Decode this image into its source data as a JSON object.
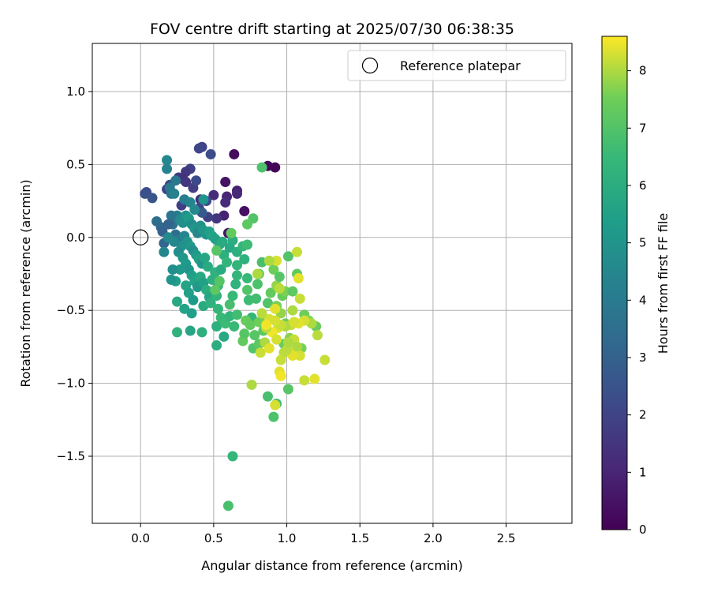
{
  "chart_data": {
    "type": "scatter",
    "title": "FOV centre drift starting at 2025/07/30 06:38:35",
    "xlabel": "Angular distance from reference (arcmin)",
    "ylabel": "Rotation from reference (arcmin)",
    "xlim": [
      -0.33,
      2.95
    ],
    "ylim": [
      -1.96,
      1.33
    ],
    "xticks": [
      0.0,
      0.5,
      1.0,
      1.5,
      2.0,
      2.5
    ],
    "xtick_labels": [
      "0.0",
      "0.5",
      "1.0",
      "1.5",
      "2.0",
      "2.5"
    ],
    "yticks": [
      -1.5,
      -1.0,
      -0.5,
      0.0,
      0.5,
      1.0
    ],
    "ytick_labels": [
      "−1.5",
      "−1.0",
      "−0.5",
      "0.0",
      "0.5",
      "1.0"
    ],
    "grid": true,
    "legend": {
      "placement": "top-right",
      "entries": [
        {
          "label": "Reference platepar",
          "marker": "open-circle"
        }
      ]
    },
    "reference_point": {
      "x": 0.0,
      "y": 0.0
    },
    "colorbar": {
      "label": "Hours from first FF file",
      "colormap": "viridis",
      "range": [
        0,
        8.6
      ],
      "ticks": [
        0,
        1,
        2,
        3,
        4,
        5,
        6,
        7,
        8
      ],
      "tick_labels": [
        "0",
        "1",
        "2",
        "3",
        "4",
        "5",
        "6",
        "7",
        "8"
      ]
    },
    "points": [
      {
        "x": 0.64,
        "y": 0.57,
        "h": 0.3
      },
      {
        "x": 0.87,
        "y": 0.49,
        "h": 0.2
      },
      {
        "x": 0.92,
        "y": 0.48,
        "h": 0.1
      },
      {
        "x": 0.58,
        "y": 0.38,
        "h": 0.5
      },
      {
        "x": 0.66,
        "y": 0.32,
        "h": 0.8
      },
      {
        "x": 0.59,
        "y": 0.28,
        "h": 1.0
      },
      {
        "x": 0.71,
        "y": 0.18,
        "h": 0.4
      },
      {
        "x": 0.58,
        "y": 0.24,
        "h": 1.2
      },
      {
        "x": 0.6,
        "y": 0.03,
        "h": 0.6
      },
      {
        "x": 0.66,
        "y": 0.3,
        "h": 1.1
      },
      {
        "x": 0.57,
        "y": 0.15,
        "h": 0.9
      },
      {
        "x": 0.42,
        "y": 0.62,
        "h": 2.0
      },
      {
        "x": 0.4,
        "y": 0.61,
        "h": 2.1
      },
      {
        "x": 0.48,
        "y": 0.57,
        "h": 2.3
      },
      {
        "x": 0.34,
        "y": 0.47,
        "h": 1.9
      },
      {
        "x": 0.31,
        "y": 0.45,
        "h": 1.6
      },
      {
        "x": 0.26,
        "y": 0.41,
        "h": 1.7
      },
      {
        "x": 0.29,
        "y": 0.4,
        "h": 1.4
      },
      {
        "x": 0.31,
        "y": 0.38,
        "h": 1.5
      },
      {
        "x": 0.36,
        "y": 0.34,
        "h": 1.8
      },
      {
        "x": 0.41,
        "y": 0.26,
        "h": 1.3
      },
      {
        "x": 0.5,
        "y": 0.29,
        "h": 1.2
      },
      {
        "x": 0.52,
        "y": 0.13,
        "h": 1.5
      },
      {
        "x": 0.38,
        "y": 0.39,
        "h": 2.2
      },
      {
        "x": 0.04,
        "y": 0.31,
        "h": 2.3
      },
      {
        "x": 0.03,
        "y": 0.3,
        "h": 2.4
      },
      {
        "x": 0.08,
        "y": 0.27,
        "h": 2.6
      },
      {
        "x": 0.18,
        "y": 0.33,
        "h": 2.0
      },
      {
        "x": 0.2,
        "y": 0.36,
        "h": 2.2
      },
      {
        "x": 0.46,
        "y": 0.14,
        "h": 1.9
      },
      {
        "x": 0.45,
        "y": 0.25,
        "h": 2.3
      },
      {
        "x": 0.4,
        "y": 0.2,
        "h": 2.0
      },
      {
        "x": 0.42,
        "y": 0.17,
        "h": 2.7
      },
      {
        "x": 0.28,
        "y": 0.22,
        "h": 1.8
      },
      {
        "x": 0.18,
        "y": 0.53,
        "h": 4.5
      },
      {
        "x": 0.18,
        "y": 0.47,
        "h": 4.3
      },
      {
        "x": 0.24,
        "y": 0.39,
        "h": 3.9
      },
      {
        "x": 0.2,
        "y": 0.34,
        "h": 4.0
      },
      {
        "x": 0.21,
        "y": 0.3,
        "h": 3.8
      },
      {
        "x": 0.23,
        "y": 0.3,
        "h": 4.2
      },
      {
        "x": 0.3,
        "y": 0.26,
        "h": 4.1
      },
      {
        "x": 0.34,
        "y": 0.24,
        "h": 4.4
      },
      {
        "x": 0.43,
        "y": 0.26,
        "h": 5.0
      },
      {
        "x": 0.37,
        "y": 0.19,
        "h": 4.6
      },
      {
        "x": 0.25,
        "y": 0.15,
        "h": 4.2
      },
      {
        "x": 0.11,
        "y": 0.11,
        "h": 3.5
      },
      {
        "x": 0.14,
        "y": 0.07,
        "h": 3.3
      },
      {
        "x": 0.15,
        "y": 0.04,
        "h": 3.0
      },
      {
        "x": 0.16,
        "y": -0.04,
        "h": 3.2
      },
      {
        "x": 0.21,
        "y": 0.15,
        "h": 3.8
      },
      {
        "x": 0.22,
        "y": 0.09,
        "h": 3.7
      },
      {
        "x": 0.24,
        "y": 0.02,
        "h": 3.5
      },
      {
        "x": 0.25,
        "y": -0.02,
        "h": 3.9
      },
      {
        "x": 0.19,
        "y": 0.09,
        "h": 3.1
      },
      {
        "x": 0.27,
        "y": 0.12,
        "h": 4.6
      },
      {
        "x": 0.29,
        "y": 0.1,
        "h": 4.8
      },
      {
        "x": 0.31,
        "y": 0.15,
        "h": 5.0
      },
      {
        "x": 0.33,
        "y": 0.13,
        "h": 5.3
      },
      {
        "x": 0.35,
        "y": 0.09,
        "h": 4.7
      },
      {
        "x": 0.37,
        "y": 0.06,
        "h": 5.1
      },
      {
        "x": 0.39,
        "y": 0.03,
        "h": 4.5
      },
      {
        "x": 0.41,
        "y": 0.08,
        "h": 4.9
      },
      {
        "x": 0.43,
        "y": 0.05,
        "h": 5.2
      },
      {
        "x": 0.45,
        "y": 0.02,
        "h": 5.0
      },
      {
        "x": 0.47,
        "y": 0.04,
        "h": 5.4
      },
      {
        "x": 0.49,
        "y": 0.01,
        "h": 5.6
      },
      {
        "x": 0.51,
        "y": -0.01,
        "h": 5.5
      },
      {
        "x": 0.3,
        "y": 0.01,
        "h": 4.4
      },
      {
        "x": 0.32,
        "y": -0.03,
        "h": 5.0
      },
      {
        "x": 0.34,
        "y": -0.06,
        "h": 5.2
      },
      {
        "x": 0.36,
        "y": -0.09,
        "h": 4.8
      },
      {
        "x": 0.38,
        "y": -0.12,
        "h": 5.3
      },
      {
        "x": 0.4,
        "y": -0.15,
        "h": 5.5
      },
      {
        "x": 0.42,
        "y": -0.18,
        "h": 5.1
      },
      {
        "x": 0.44,
        "y": -0.14,
        "h": 5.7
      },
      {
        "x": 0.46,
        "y": -0.2,
        "h": 5.9
      },
      {
        "x": 0.28,
        "y": -0.06,
        "h": 4.9
      },
      {
        "x": 0.26,
        "y": -0.1,
        "h": 4.7
      },
      {
        "x": 0.29,
        "y": -0.14,
        "h": 5.1
      },
      {
        "x": 0.31,
        "y": -0.18,
        "h": 5.3
      },
      {
        "x": 0.33,
        "y": -0.22,
        "h": 5.0
      },
      {
        "x": 0.35,
        "y": -0.26,
        "h": 5.4
      },
      {
        "x": 0.37,
        "y": -0.3,
        "h": 5.6
      },
      {
        "x": 0.39,
        "y": -0.34,
        "h": 5.2
      },
      {
        "x": 0.41,
        "y": -0.27,
        "h": 5.8
      },
      {
        "x": 0.43,
        "y": -0.31,
        "h": 5.5
      },
      {
        "x": 0.45,
        "y": -0.36,
        "h": 6.0
      },
      {
        "x": 0.47,
        "y": -0.41,
        "h": 5.7
      },
      {
        "x": 0.49,
        "y": -0.29,
        "h": 6.1
      },
      {
        "x": 0.51,
        "y": -0.24,
        "h": 6.2
      },
      {
        "x": 0.53,
        "y": -0.33,
        "h": 6.4
      },
      {
        "x": 0.55,
        "y": -0.22,
        "h": 5.9
      },
      {
        "x": 0.57,
        "y": -0.12,
        "h": 6.1
      },
      {
        "x": 0.59,
        "y": -0.17,
        "h": 6.3
      },
      {
        "x": 0.61,
        "y": -0.07,
        "h": 5.8
      },
      {
        "x": 0.63,
        "y": -0.02,
        "h": 6.0
      },
      {
        "x": 0.54,
        "y": -0.05,
        "h": 5.7
      },
      {
        "x": 0.56,
        "y": -0.03,
        "h": 5.9
      },
      {
        "x": 0.27,
        "y": -0.22,
        "h": 5.2
      },
      {
        "x": 0.24,
        "y": -0.3,
        "h": 5.4
      },
      {
        "x": 0.31,
        "y": -0.33,
        "h": 5.6
      },
      {
        "x": 0.33,
        "y": -0.38,
        "h": 5.5
      },
      {
        "x": 0.36,
        "y": -0.43,
        "h": 5.3
      },
      {
        "x": 0.3,
        "y": -0.49,
        "h": 5.6
      },
      {
        "x": 0.25,
        "y": -0.44,
        "h": 5.8
      },
      {
        "x": 0.35,
        "y": -0.52,
        "h": 5.4
      },
      {
        "x": 0.43,
        "y": -0.47,
        "h": 5.9
      },
      {
        "x": 0.48,
        "y": -0.45,
        "h": 6.2
      },
      {
        "x": 0.52,
        "y": -0.4,
        "h": 6.3
      },
      {
        "x": 0.53,
        "y": -0.49,
        "h": 6.4
      },
      {
        "x": 0.52,
        "y": -0.61,
        "h": 6.1
      },
      {
        "x": 0.55,
        "y": -0.55,
        "h": 6.5
      },
      {
        "x": 0.58,
        "y": -0.59,
        "h": 6.6
      },
      {
        "x": 0.61,
        "y": -0.54,
        "h": 6.3
      },
      {
        "x": 0.57,
        "y": -0.68,
        "h": 5.8
      },
      {
        "x": 0.52,
        "y": -0.74,
        "h": 6.0
      },
      {
        "x": 0.25,
        "y": -0.65,
        "h": 6.2
      },
      {
        "x": 0.34,
        "y": -0.64,
        "h": 5.7
      },
      {
        "x": 0.42,
        "y": -0.65,
        "h": 6.1
      },
      {
        "x": 0.64,
        "y": -0.61,
        "h": 6.5
      },
      {
        "x": 0.66,
        "y": -0.53,
        "h": 6.7
      },
      {
        "x": 0.61,
        "y": -0.46,
        "h": 6.8
      },
      {
        "x": 0.63,
        "y": -0.4,
        "h": 6.5
      },
      {
        "x": 0.65,
        "y": -0.32,
        "h": 6.2
      },
      {
        "x": 0.66,
        "y": -0.26,
        "h": 6.4
      },
      {
        "x": 0.66,
        "y": -0.19,
        "h": 6.3
      },
      {
        "x": 0.66,
        "y": -0.1,
        "h": 6.1
      },
      {
        "x": 0.21,
        "y": -0.29,
        "h": 5.0
      },
      {
        "x": 0.22,
        "y": -0.22,
        "h": 4.8
      },
      {
        "x": 0.16,
        "y": -0.1,
        "h": 4.4
      },
      {
        "x": 0.23,
        "y": -0.03,
        "h": 4.5
      },
      {
        "x": 0.19,
        "y": 0.0,
        "h": 4.6
      },
      {
        "x": 0.7,
        "y": -0.06,
        "h": 6.4
      },
      {
        "x": 0.73,
        "y": -0.05,
        "h": 6.6
      },
      {
        "x": 0.71,
        "y": -0.15,
        "h": 6.2
      },
      {
        "x": 0.73,
        "y": -0.28,
        "h": 6.5
      },
      {
        "x": 0.74,
        "y": -0.43,
        "h": 6.6
      },
      {
        "x": 0.76,
        "y": -0.55,
        "h": 6.4
      },
      {
        "x": 0.79,
        "y": -0.42,
        "h": 6.7
      },
      {
        "x": 0.8,
        "y": -0.32,
        "h": 6.9
      },
      {
        "x": 0.81,
        "y": -0.25,
        "h": 7.0
      },
      {
        "x": 0.83,
        "y": -0.17,
        "h": 6.8
      },
      {
        "x": 0.77,
        "y": 0.13,
        "h": 7.0
      },
      {
        "x": 0.73,
        "y": 0.09,
        "h": 7.2
      },
      {
        "x": 0.83,
        "y": 0.48,
        "h": 6.9
      },
      {
        "x": 0.62,
        "y": 0.03,
        "h": 7.3
      },
      {
        "x": 0.52,
        "y": -0.09,
        "h": 7.1
      },
      {
        "x": 0.51,
        "y": -0.36,
        "h": 7.2
      },
      {
        "x": 0.54,
        "y": -0.3,
        "h": 7.1
      },
      {
        "x": 0.73,
        "y": -0.36,
        "h": 7.0
      },
      {
        "x": 0.72,
        "y": -0.57,
        "h": 7.4
      },
      {
        "x": 0.75,
        "y": -0.6,
        "h": 7.3
      },
      {
        "x": 0.78,
        "y": -0.67,
        "h": 7.1
      },
      {
        "x": 0.81,
        "y": -0.58,
        "h": 7.5
      },
      {
        "x": 0.84,
        "y": -0.64,
        "h": 7.2
      },
      {
        "x": 0.86,
        "y": -0.57,
        "h": 7.6
      },
      {
        "x": 0.87,
        "y": -0.45,
        "h": 7.0
      },
      {
        "x": 0.89,
        "y": -0.38,
        "h": 7.3
      },
      {
        "x": 0.91,
        "y": -0.22,
        "h": 7.5
      },
      {
        "x": 0.93,
        "y": -0.33,
        "h": 7.8
      },
      {
        "x": 0.95,
        "y": -0.27,
        "h": 7.1
      },
      {
        "x": 0.97,
        "y": -0.4,
        "h": 7.4
      },
      {
        "x": 0.99,
        "y": -0.37,
        "h": 7.6
      },
      {
        "x": 1.01,
        "y": -0.13,
        "h": 7.0
      },
      {
        "x": 1.04,
        "y": -0.37,
        "h": 7.2
      },
      {
        "x": 1.07,
        "y": -0.25,
        "h": 7.3
      },
      {
        "x": 1.12,
        "y": -0.53,
        "h": 7.5
      },
      {
        "x": 1.15,
        "y": -0.57,
        "h": 7.7
      },
      {
        "x": 1.2,
        "y": -0.61,
        "h": 7.4
      },
      {
        "x": 0.93,
        "y": -0.47,
        "h": 7.6
      },
      {
        "x": 0.96,
        "y": -0.52,
        "h": 7.8
      },
      {
        "x": 0.99,
        "y": -0.59,
        "h": 7.5
      },
      {
        "x": 0.77,
        "y": -0.76,
        "h": 7.0
      },
      {
        "x": 0.81,
        "y": -0.73,
        "h": 7.2
      },
      {
        "x": 0.7,
        "y": -0.71,
        "h": 7.3
      },
      {
        "x": 0.71,
        "y": -0.66,
        "h": 7.1
      },
      {
        "x": 0.98,
        "y": -0.73,
        "h": 7.4
      },
      {
        "x": 1.02,
        "y": -0.69,
        "h": 7.7
      },
      {
        "x": 1.1,
        "y": -0.76,
        "h": 7.6
      },
      {
        "x": 0.87,
        "y": -1.09,
        "h": 6.8
      },
      {
        "x": 0.93,
        "y": -1.14,
        "h": 6.7
      },
      {
        "x": 0.91,
        "y": -1.23,
        "h": 6.9
      },
      {
        "x": 1.01,
        "y": -1.04,
        "h": 7.1
      },
      {
        "x": 0.63,
        "y": -1.5,
        "h": 6.4
      },
      {
        "x": 0.6,
        "y": -1.84,
        "h": 6.8
      },
      {
        "x": 0.76,
        "y": -1.01,
        "h": 8.0
      },
      {
        "x": 0.92,
        "y": -1.15,
        "h": 8.3
      },
      {
        "x": 1.12,
        "y": -0.98,
        "h": 8.2
      },
      {
        "x": 1.19,
        "y": -0.97,
        "h": 8.4
      },
      {
        "x": 1.26,
        "y": -0.84,
        "h": 8.2
      },
      {
        "x": 0.95,
        "y": -0.92,
        "h": 8.4
      },
      {
        "x": 0.96,
        "y": -0.95,
        "h": 8.5
      },
      {
        "x": 1.21,
        "y": -0.67,
        "h": 8.1
      },
      {
        "x": 1.17,
        "y": -0.59,
        "h": 8.0
      },
      {
        "x": 1.12,
        "y": -0.57,
        "h": 8.3
      },
      {
        "x": 1.08,
        "y": -0.59,
        "h": 8.4
      },
      {
        "x": 1.03,
        "y": -0.6,
        "h": 8.2
      },
      {
        "x": 0.99,
        "y": -0.61,
        "h": 8.0
      },
      {
        "x": 0.94,
        "y": -0.62,
        "h": 8.3
      },
      {
        "x": 0.9,
        "y": -0.65,
        "h": 8.5
      },
      {
        "x": 0.86,
        "y": -0.62,
        "h": 8.1
      },
      {
        "x": 0.82,
        "y": -0.79,
        "h": 8.2
      },
      {
        "x": 0.85,
        "y": -0.72,
        "h": 8.0
      },
      {
        "x": 0.88,
        "y": -0.76,
        "h": 8.4
      },
      {
        "x": 0.93,
        "y": -0.7,
        "h": 8.3
      },
      {
        "x": 0.98,
        "y": -0.79,
        "h": 8.1
      },
      {
        "x": 1.02,
        "y": -0.75,
        "h": 8.5
      },
      {
        "x": 1.05,
        "y": -0.7,
        "h": 8.2
      },
      {
        "x": 1.07,
        "y": -0.75,
        "h": 8.0
      },
      {
        "x": 1.09,
        "y": -0.81,
        "h": 8.3
      },
      {
        "x": 1.04,
        "y": -0.81,
        "h": 8.4
      },
      {
        "x": 1.0,
        "y": -0.77,
        "h": 8.1
      },
      {
        "x": 0.96,
        "y": -0.84,
        "h": 8.2
      },
      {
        "x": 1.01,
        "y": -0.72,
        "h": 8.0
      },
      {
        "x": 0.88,
        "y": -0.56,
        "h": 8.3
      },
      {
        "x": 0.83,
        "y": -0.52,
        "h": 8.1
      },
      {
        "x": 0.92,
        "y": -0.49,
        "h": 8.4
      },
      {
        "x": 0.96,
        "y": -0.6,
        "h": 8.2
      },
      {
        "x": 1.04,
        "y": -0.5,
        "h": 8.0
      },
      {
        "x": 1.05,
        "y": -0.58,
        "h": 8.3
      },
      {
        "x": 1.09,
        "y": -0.42,
        "h": 8.2
      },
      {
        "x": 1.08,
        "y": -0.28,
        "h": 8.4
      },
      {
        "x": 1.07,
        "y": -0.1,
        "h": 8.2
      },
      {
        "x": 0.93,
        "y": -0.16,
        "h": 8.3
      },
      {
        "x": 0.88,
        "y": -0.16,
        "h": 8.0
      },
      {
        "x": 0.95,
        "y": -0.35,
        "h": 8.1
      },
      {
        "x": 0.8,
        "y": -0.25,
        "h": 8.0
      },
      {
        "x": 0.86,
        "y": -0.6,
        "h": 8.5
      },
      {
        "x": 0.92,
        "y": -0.57,
        "h": 8.3
      }
    ]
  }
}
